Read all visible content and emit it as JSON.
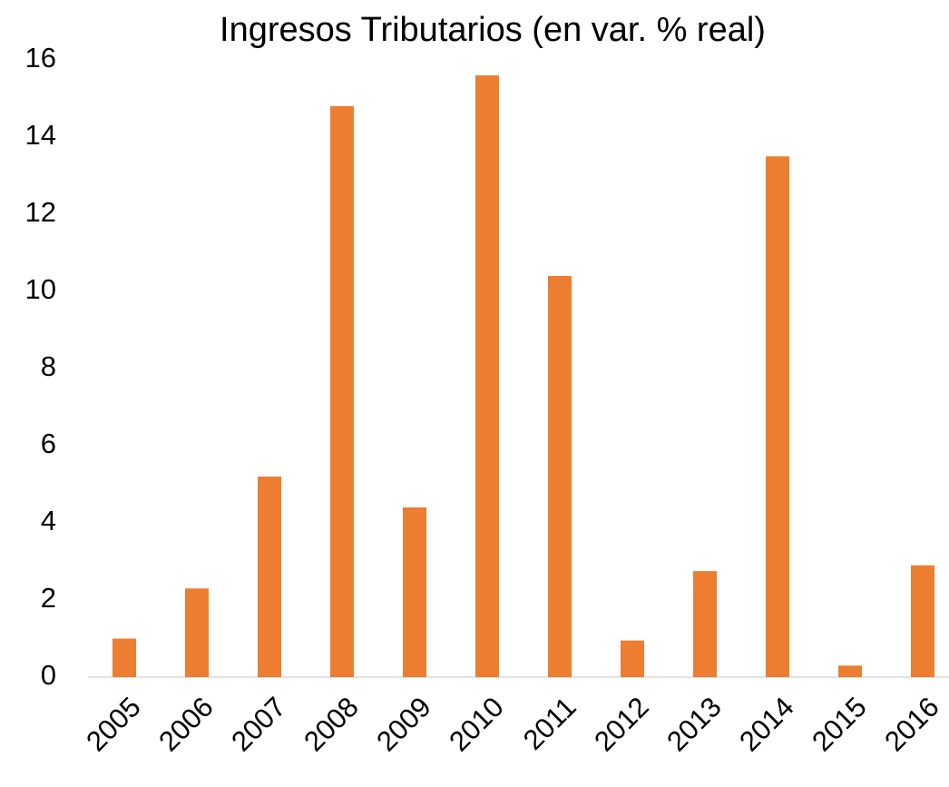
{
  "chart_data": {
    "type": "bar",
    "title": "Ingresos Tributarios (en var. % real)",
    "categories": [
      "2005",
      "2006",
      "2007",
      "2008",
      "2009",
      "2010",
      "2011",
      "2012",
      "2013",
      "2014",
      "2015",
      "2016"
    ],
    "values": [
      1.0,
      2.3,
      5.2,
      14.8,
      4.4,
      15.6,
      10.4,
      0.95,
      2.75,
      13.5,
      0.3,
      2.9
    ],
    "color": "#ed7d31",
    "ylim": [
      0,
      16
    ],
    "yticks": [
      0,
      2,
      4,
      6,
      8,
      10,
      12,
      14,
      16
    ],
    "grid": false
  }
}
